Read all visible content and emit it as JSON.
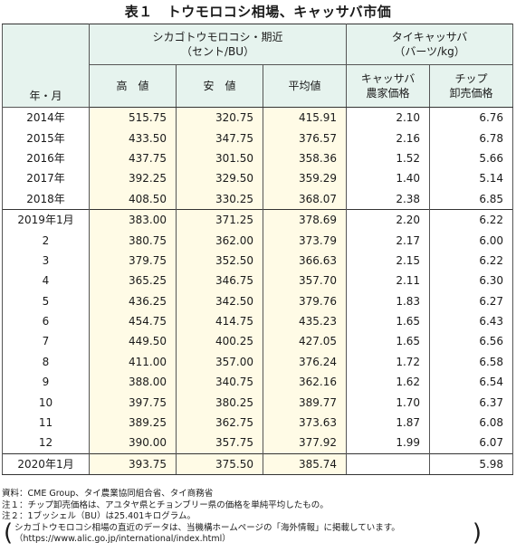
{
  "title": {
    "label": "表１",
    "text": "トウモロコシ相場、キャッサバ市価"
  },
  "header": {
    "row_label": "年・月",
    "group1": {
      "name": "シカゴトウモロコシ・期近",
      "unit": "（セント/BU）",
      "cols": [
        "高　値",
        "安　値",
        "平均値"
      ]
    },
    "group2": {
      "name": "タイキャッサバ",
      "unit": "（バーツ/kg）",
      "cols": [
        {
          "line1": "キャッサバ",
          "line2": "農家価格"
        },
        {
          "line1": "チップ",
          "line2": "卸売価格"
        }
      ]
    }
  },
  "rows": [
    {
      "label": "2014年",
      "high": "515.75",
      "low": "320.75",
      "avg": "415.91",
      "farm": "2.10",
      "chip": "6.76"
    },
    {
      "label": "2015年",
      "high": "433.50",
      "low": "347.75",
      "avg": "376.57",
      "farm": "2.16",
      "chip": "6.78"
    },
    {
      "label": "2016年",
      "high": "437.75",
      "low": "301.50",
      "avg": "358.36",
      "farm": "1.52",
      "chip": "5.66"
    },
    {
      "label": "2017年",
      "high": "392.25",
      "low": "329.50",
      "avg": "359.29",
      "farm": "1.40",
      "chip": "5.14"
    },
    {
      "label": "2018年",
      "high": "408.50",
      "low": "330.25",
      "avg": "368.07",
      "farm": "2.38",
      "chip": "6.85"
    },
    {
      "label": "2019年1月",
      "high": "383.00",
      "low": "371.25",
      "avg": "378.69",
      "farm": "2.20",
      "chip": "6.22"
    },
    {
      "label": "2",
      "high": "380.75",
      "low": "362.00",
      "avg": "373.79",
      "farm": "2.17",
      "chip": "6.00"
    },
    {
      "label": "3",
      "high": "379.75",
      "low": "352.50",
      "avg": "366.63",
      "farm": "2.15",
      "chip": "6.22"
    },
    {
      "label": "4",
      "high": "365.25",
      "low": "346.75",
      "avg": "357.70",
      "farm": "2.11",
      "chip": "6.30"
    },
    {
      "label": "5",
      "high": "436.25",
      "low": "342.50",
      "avg": "379.76",
      "farm": "1.83",
      "chip": "6.27"
    },
    {
      "label": "6",
      "high": "454.75",
      "low": "414.75",
      "avg": "435.23",
      "farm": "1.65",
      "chip": "6.43"
    },
    {
      "label": "7",
      "high": "449.50",
      "low": "400.25",
      "avg": "427.05",
      "farm": "1.65",
      "chip": "6.56"
    },
    {
      "label": "8",
      "high": "411.00",
      "low": "357.00",
      "avg": "376.24",
      "farm": "1.72",
      "chip": "6.58"
    },
    {
      "label": "9",
      "high": "388.00",
      "low": "340.75",
      "avg": "362.16",
      "farm": "1.62",
      "chip": "6.54"
    },
    {
      "label": "10",
      "high": "397.75",
      "low": "380.25",
      "avg": "389.77",
      "farm": "1.70",
      "chip": "6.37"
    },
    {
      "label": "11",
      "high": "389.25",
      "low": "362.75",
      "avg": "373.63",
      "farm": "1.87",
      "chip": "6.08"
    },
    {
      "label": "12",
      "high": "390.00",
      "low": "357.75",
      "avg": "377.92",
      "farm": "1.99",
      "chip": "6.07"
    },
    {
      "label": "2020年1月",
      "high": "393.75",
      "low": "375.50",
      "avg": "385.74",
      "farm": "",
      "chip": "5.98"
    }
  ],
  "notes": {
    "source": "資料：CME Group、タイ農業協同組合省、タイ商務省",
    "note1": "注１：チップ卸売価格は、アユタヤ県とチョンブリー県の価格を単純平均したもの。",
    "note2": "注２：1ブッシェル（BU）は25.401キログラム。",
    "paren_open": "(",
    "paren_close": ")",
    "extra_line1": "シカゴトウモロコシ相場の直近のデータは、当機構ホームページの「海外情報」に掲載しています。",
    "extra_line2": "（https://www.alic.go.jp/international/index.html）"
  },
  "colors": {
    "header_bg": "#e6f3ee",
    "group1_body_bg": "#fffbe6",
    "rule": "#333333"
  }
}
